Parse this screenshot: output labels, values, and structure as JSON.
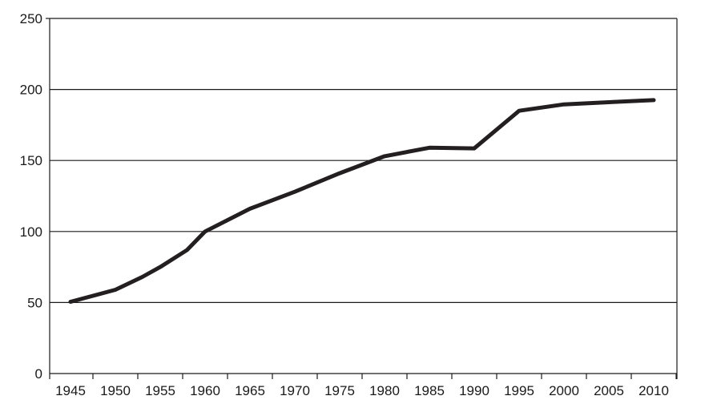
{
  "chart_data": {
    "type": "line",
    "title": "",
    "xlabel": "",
    "ylabel": "",
    "x": [
      1945,
      1950,
      1953,
      1955,
      1958,
      1960,
      1965,
      1970,
      1975,
      1980,
      1985,
      1990,
      1995,
      2000,
      2005,
      2010
    ],
    "series": [
      {
        "values": [
          50.5,
          59,
          68,
          75,
          87,
          100,
          116,
          128,
          141,
          153,
          159,
          158.5,
          185,
          189.5,
          191,
          192.5
        ]
      }
    ],
    "x_ticks": [
      "1945",
      "1950",
      "1955",
      "1960",
      "1965",
      "1970",
      "1975",
      "1980",
      "1985",
      "1990",
      "1995",
      "2000",
      "2005",
      "2010"
    ],
    "y_ticks": [
      "0",
      "50",
      "100",
      "150",
      "200",
      "250"
    ],
    "xlim": [
      1945,
      2010
    ],
    "ylim": [
      0,
      250
    ],
    "grid": true,
    "legend": "none",
    "line_color": "#231f20"
  }
}
